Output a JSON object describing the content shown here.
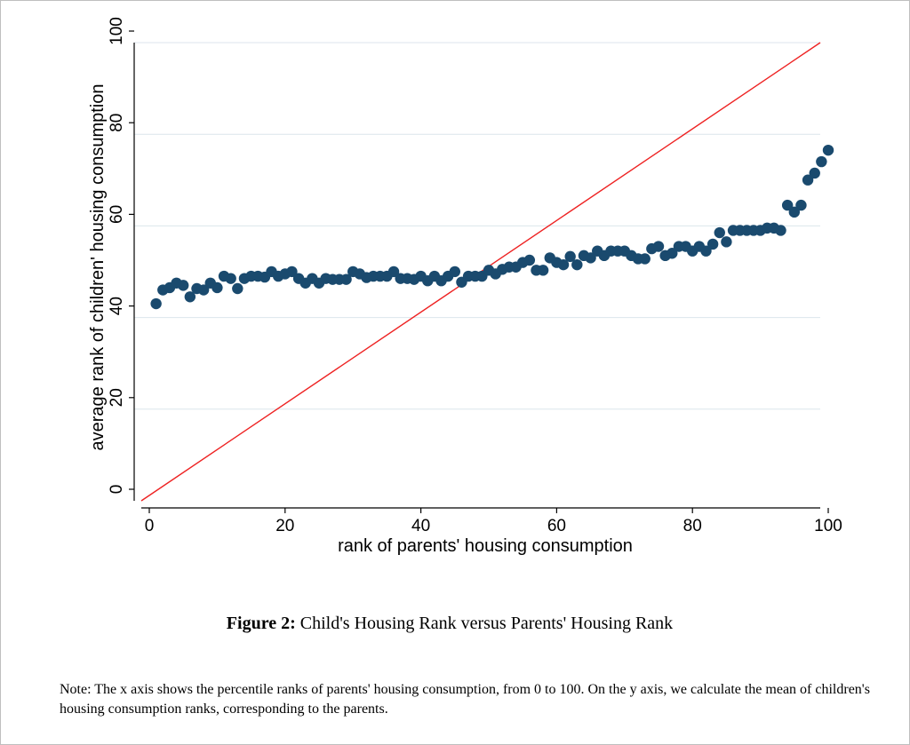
{
  "chart_data": {
    "type": "scatter",
    "xlabel": "rank of parents' housing consumption",
    "ylabel": "average rank of children' housing consumption",
    "xlim": [
      0,
      100
    ],
    "ylim": [
      0,
      100
    ],
    "xticks": [
      0,
      20,
      40,
      60,
      80,
      100
    ],
    "yticks": [
      0,
      20,
      40,
      60,
      80,
      100
    ],
    "grid": "horizontal",
    "reference_line": {
      "type": "45-degree",
      "from": [
        0,
        0
      ],
      "to": [
        100,
        100
      ],
      "color": "#ee2222"
    },
    "series": [
      {
        "color": "#1a4a6e",
        "x": [
          1,
          2,
          3,
          4,
          5,
          6,
          7,
          8,
          9,
          10,
          11,
          12,
          13,
          14,
          15,
          16,
          17,
          18,
          19,
          20,
          21,
          22,
          23,
          24,
          25,
          26,
          27,
          28,
          29,
          30,
          31,
          32,
          33,
          34,
          35,
          36,
          37,
          38,
          39,
          40,
          41,
          42,
          43,
          44,
          45,
          46,
          47,
          48,
          49,
          50,
          51,
          52,
          53,
          54,
          55,
          56,
          57,
          58,
          59,
          60,
          61,
          62,
          63,
          64,
          65,
          66,
          67,
          68,
          69,
          70,
          71,
          72,
          73,
          74,
          75,
          76,
          77,
          78,
          79,
          80,
          81,
          82,
          83,
          84,
          85,
          86,
          87,
          88,
          89,
          90,
          91,
          92,
          93,
          94,
          95,
          96,
          97,
          98,
          99,
          100
        ],
        "y": [
          40.5,
          43.5,
          44,
          45,
          44.5,
          42,
          43.8,
          43.5,
          45,
          44,
          46.5,
          46,
          43.8,
          46,
          46.5,
          46.5,
          46.3,
          47.5,
          46.5,
          47,
          47.5,
          46,
          45,
          46,
          45,
          46,
          45.8,
          45.8,
          45.8,
          47.5,
          47,
          46.2,
          46.5,
          46.5,
          46.5,
          47.5,
          46,
          46,
          45.8,
          46.5,
          45.5,
          46.5,
          45.5,
          46.5,
          47.5,
          45.2,
          46.5,
          46.5,
          46.5,
          47.8,
          47,
          48,
          48.5,
          48.5,
          49.5,
          50,
          47.8,
          47.8,
          50.5,
          49.5,
          49,
          50.8,
          49,
          51,
          50.5,
          52,
          51,
          52,
          52,
          52,
          51,
          50.3,
          50.3,
          52.5,
          53,
          51,
          51.5,
          53,
          53,
          52,
          53,
          52,
          53.5,
          56,
          54,
          56.5,
          56.5,
          56.5,
          56.5,
          56.5,
          57,
          57,
          56.5,
          62,
          60.5,
          62,
          67.5,
          69,
          71.5,
          74
        ]
      }
    ]
  },
  "caption": {
    "label": "Figure 2:",
    "text": " Child's Housing Rank versus Parents' Housing Rank"
  },
  "note": {
    "text": "Note: The x axis shows the percentile ranks of parents' housing consumption, from 0 to 100. On the y axis, we calculate the mean of children's housing consumption ranks, corresponding to the parents."
  }
}
